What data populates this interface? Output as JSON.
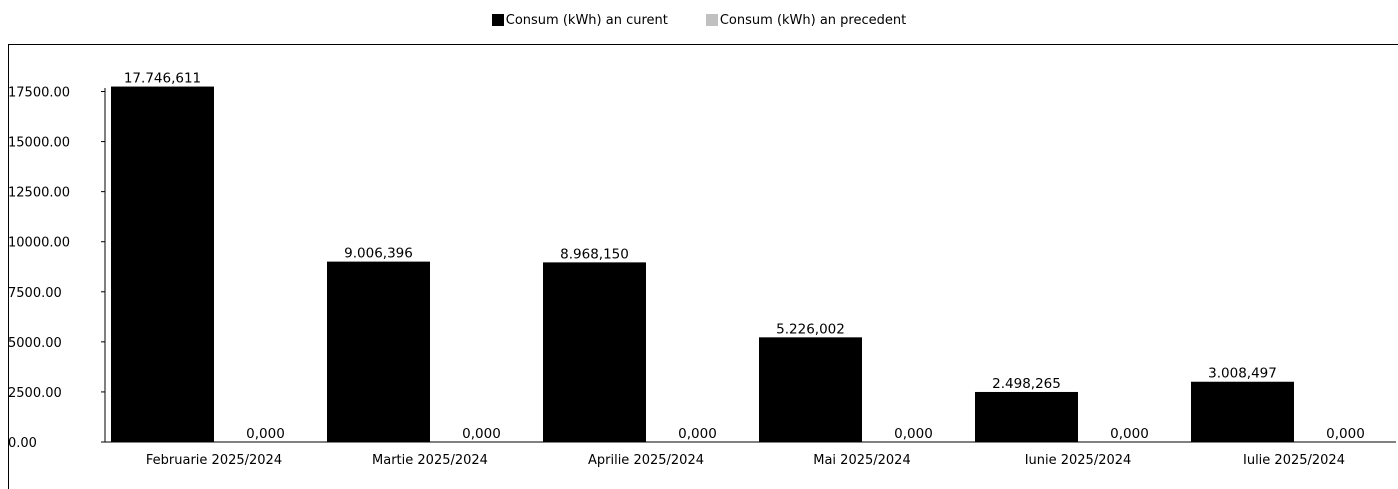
{
  "chart_data": {
    "type": "bar",
    "categories": [
      "Februarie 2025/2024",
      "Martie 2025/2024",
      "Aprilie 2025/2024",
      "Mai 2025/2024",
      "Iunie 2025/2024",
      "Iulie 2025/2024"
    ],
    "series": [
      {
        "name": "Consum (kWh) an curent",
        "color": "#000000",
        "values": [
          17746.611,
          9006.396,
          8968.15,
          5226.002,
          2498.265,
          3008.497
        ],
        "labels": [
          "17.746,611",
          "9.006,396",
          "8.968,150",
          "5.226,002",
          "2.498,265",
          "3.008,497"
        ]
      },
      {
        "name": "Consum (kWh) an precedent",
        "color": "#c0c0c0",
        "values": [
          0,
          0,
          0,
          0,
          0,
          0
        ],
        "labels": [
          "0,000",
          "0,000",
          "0,000",
          "0,000",
          "0,000",
          "0,000"
        ]
      }
    ],
    "y_ticks": [
      "0.00",
      "2500.00",
      "5000.00",
      "7500.00",
      "10000.00",
      "12500.00",
      "15000.00",
      "17500.00"
    ],
    "ylim": [
      0,
      17500
    ],
    "legend_position": "top-center",
    "grid": false
  }
}
